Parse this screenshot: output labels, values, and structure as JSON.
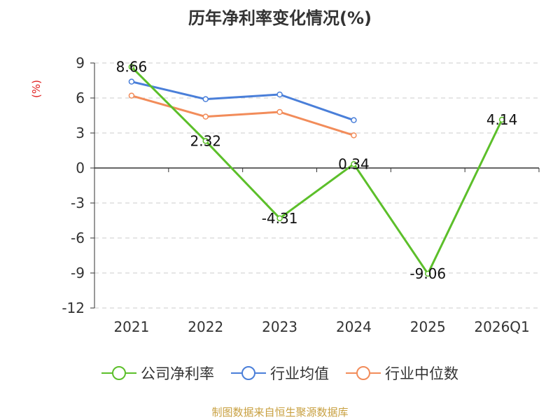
{
  "chart_data": {
    "type": "line",
    "title": "历年净利率变化情况(%)",
    "ylabel": "(%)",
    "xlabel": "",
    "categories": [
      "2021",
      "2022",
      "2023",
      "2024",
      "2025",
      "2026Q1"
    ],
    "ylim": [
      -12,
      9
    ],
    "yticks": [
      9,
      6,
      3,
      0,
      -3,
      -6,
      -9,
      -12
    ],
    "grid": true,
    "legend_position": "bottom",
    "series": [
      {
        "name": "公司净利率",
        "color": "#5cbf2a",
        "values": [
          8.66,
          2.32,
          -4.31,
          0.34,
          -9.06,
          4.14
        ],
        "labels": [
          "8.66",
          "2.32",
          "-4.31",
          "0.34",
          "-9.06",
          "4.14"
        ]
      },
      {
        "name": "行业均值",
        "color": "#4a7fd9",
        "values": [
          7.4,
          5.9,
          6.3,
          4.1,
          null,
          null
        ]
      },
      {
        "name": "行业中位数",
        "color": "#f28c5a",
        "values": [
          6.2,
          4.4,
          4.8,
          2.8,
          null,
          null
        ]
      }
    ]
  },
  "source": "制图数据来自恒生聚源数据库"
}
